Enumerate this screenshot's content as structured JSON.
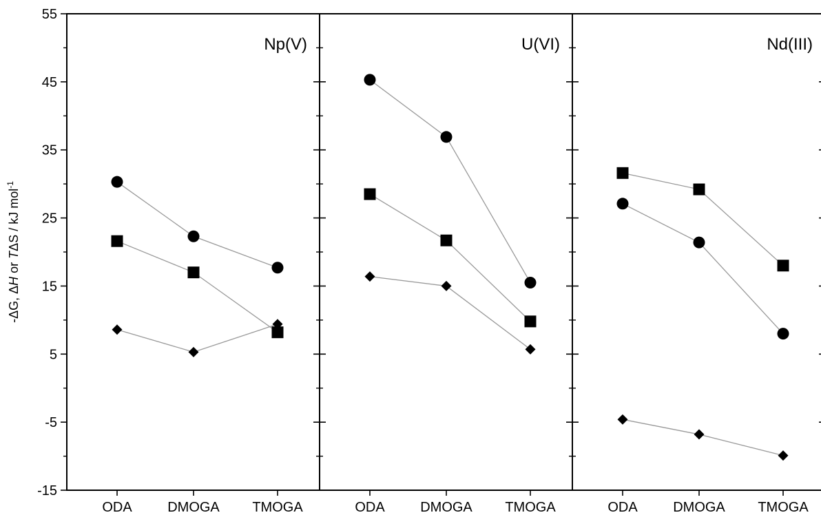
{
  "chart_data": {
    "type": "line",
    "ylabel": {
      "parts": [
        {
          "text": "-ΔG",
          "italic": false
        },
        {
          "text": ", Δ",
          "italic": false
        },
        {
          "text": "H",
          "italic": true
        },
        {
          "text": " or ",
          "italic": false
        },
        {
          "text": "T",
          "italic": true
        },
        {
          "text": "ΔS / kJ mol",
          "italic": false
        },
        {
          "text": "-1",
          "superscript": true
        }
      ]
    },
    "ylim": [
      -15,
      55
    ],
    "yticks_major": [
      -15,
      -5,
      5,
      15,
      25,
      35,
      45,
      55
    ],
    "yticks_minor": [
      -10,
      0,
      10,
      20,
      30,
      40,
      50
    ],
    "categories": [
      "ODA",
      "DMOGA",
      "TMOGA"
    ],
    "grid": false,
    "line_color": "#999999",
    "marker_color": "#000000",
    "panels": [
      {
        "title": "Np(V)",
        "series": [
          {
            "marker": "circle",
            "values": [
              30.3,
              22.3,
              17.7
            ]
          },
          {
            "marker": "square",
            "values": [
              21.6,
              17.0,
              8.2
            ]
          },
          {
            "marker": "diamond",
            "values": [
              8.6,
              5.3,
              9.4
            ]
          }
        ]
      },
      {
        "title": "U(VI)",
        "series": [
          {
            "marker": "circle",
            "values": [
              45.3,
              36.9,
              15.5
            ]
          },
          {
            "marker": "square",
            "values": [
              28.5,
              21.7,
              9.8
            ]
          },
          {
            "marker": "diamond",
            "values": [
              16.4,
              15.0,
              5.7
            ]
          }
        ]
      },
      {
        "title": "Nd(III)",
        "series": [
          {
            "marker": "square",
            "values": [
              31.6,
              29.2,
              18.0
            ]
          },
          {
            "marker": "circle",
            "values": [
              27.1,
              21.4,
              8.0
            ]
          },
          {
            "marker": "diamond",
            "values": [
              -4.6,
              -6.8,
              -9.9
            ]
          }
        ]
      }
    ]
  }
}
